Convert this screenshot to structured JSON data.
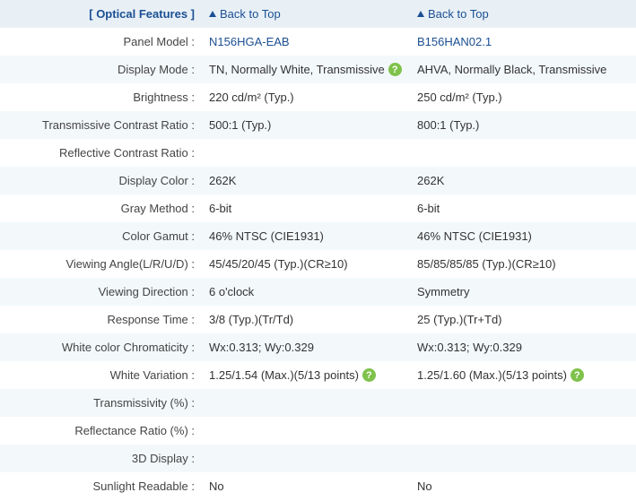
{
  "section_title": "[ Optical Features ]",
  "back_to_top": "Back to Top",
  "help_glyph": "?",
  "rows": [
    {
      "label": "Panel Model :",
      "v1": "N156HGA-EAB",
      "v2": "B156HAN02.1",
      "link": true
    },
    {
      "label": "Display Mode :",
      "v1": "TN, Normally White, Transmissive",
      "v2": "AHVA, Normally Black, Transmissive",
      "help1": true
    },
    {
      "label": "Brightness :",
      "v1": "220 cd/m² (Typ.)",
      "v2": "250 cd/m² (Typ.)"
    },
    {
      "label": "Transmissive Contrast Ratio :",
      "v1": "500:1 (Typ.)",
      "v2": "800:1 (Typ.)"
    },
    {
      "label": "Reflective Contrast Ratio :",
      "v1": "",
      "v2": ""
    },
    {
      "label": "Display Color :",
      "v1": "262K",
      "v2": "262K"
    },
    {
      "label": "Gray Method :",
      "v1": "6-bit",
      "v2": "6-bit"
    },
    {
      "label": "Color Gamut :",
      "v1": "46% NTSC (CIE1931)",
      "v2": "46% NTSC (CIE1931)"
    },
    {
      "label": "Viewing Angle(L/R/U/D) :",
      "v1": "45/45/20/45 (Typ.)(CR≥10)",
      "v2": "85/85/85/85 (Typ.)(CR≥10)"
    },
    {
      "label": "Viewing Direction :",
      "v1": "6 o'clock",
      "v2": "Symmetry"
    },
    {
      "label": "Response Time :",
      "v1": "3/8 (Typ.)(Tr/Td)",
      "v2": "25 (Typ.)(Tr+Td)"
    },
    {
      "label": "White color Chromaticity :",
      "v1": "Wx:0.313; Wy:0.329",
      "v2": "Wx:0.313; Wy:0.329"
    },
    {
      "label": "White Variation :",
      "v1": "1.25/1.54 (Max.)(5/13 points)",
      "v2": "1.25/1.60 (Max.)(5/13 points)",
      "help1": true,
      "help2": true
    },
    {
      "label": "Transmissivity (%) :",
      "v1": "",
      "v2": ""
    },
    {
      "label": "Reflectance Ratio (%) :",
      "v1": "",
      "v2": ""
    },
    {
      "label": "3D Display :",
      "v1": "",
      "v2": ""
    },
    {
      "label": "Sunlight Readable :",
      "v1": "No",
      "v2": "No"
    }
  ]
}
